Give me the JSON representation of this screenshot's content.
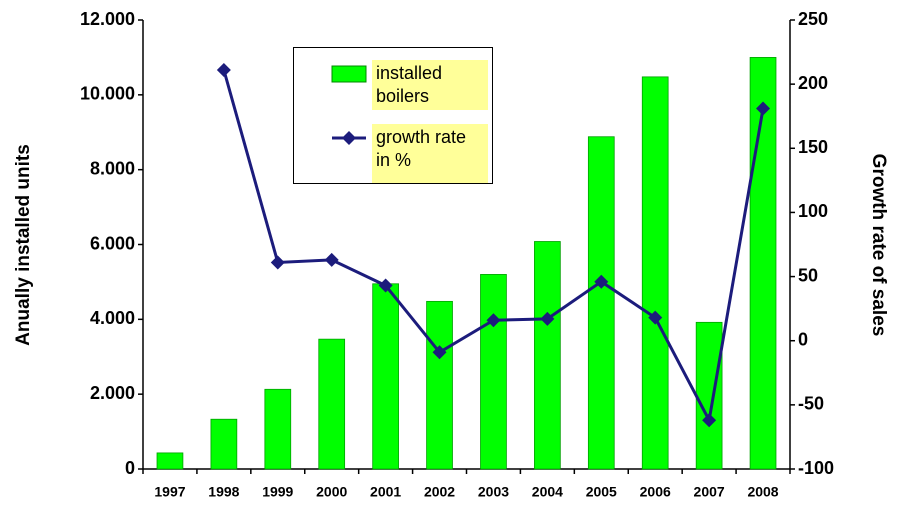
{
  "chart_data": {
    "type": "bar",
    "ylabel": "Anually installed units",
    "y2label": "Growth rate of sales",
    "categories": [
      "1997",
      "1998",
      "1999",
      "2000",
      "2001",
      "2002",
      "2003",
      "2004",
      "2005",
      "2006",
      "2007",
      "2008"
    ],
    "series": [
      {
        "name": "installed boilers",
        "type": "bar",
        "color": "#00ff00",
        "values": [
          430,
          1330,
          2130,
          3470,
          4950,
          4480,
          5200,
          6080,
          8880,
          10480,
          3920,
          11000
        ]
      },
      {
        "name": "growth rate in %",
        "type": "line",
        "axis": "y2",
        "color": "#1c1c7c",
        "values": [
          null,
          211,
          61,
          63,
          43,
          -9,
          16,
          17,
          46,
          18,
          -62,
          181
        ]
      }
    ],
    "ylim": [
      0,
      12000
    ],
    "yticks": [
      0,
      {
        "value": 2000,
        "label": "2.000"
      },
      {
        "value": 4000,
        "label": "4.000"
      },
      {
        "value": 6000,
        "label": "6.000"
      },
      {
        "value": 8000,
        "label": "8.000"
      },
      {
        "value": 10000,
        "label": "10.000"
      },
      {
        "value": 12000,
        "label": "12.000"
      }
    ],
    "y2lim": [
      -100,
      250
    ],
    "y2ticks": [
      -100,
      -50,
      0,
      50,
      100,
      150,
      200,
      250
    ]
  }
}
